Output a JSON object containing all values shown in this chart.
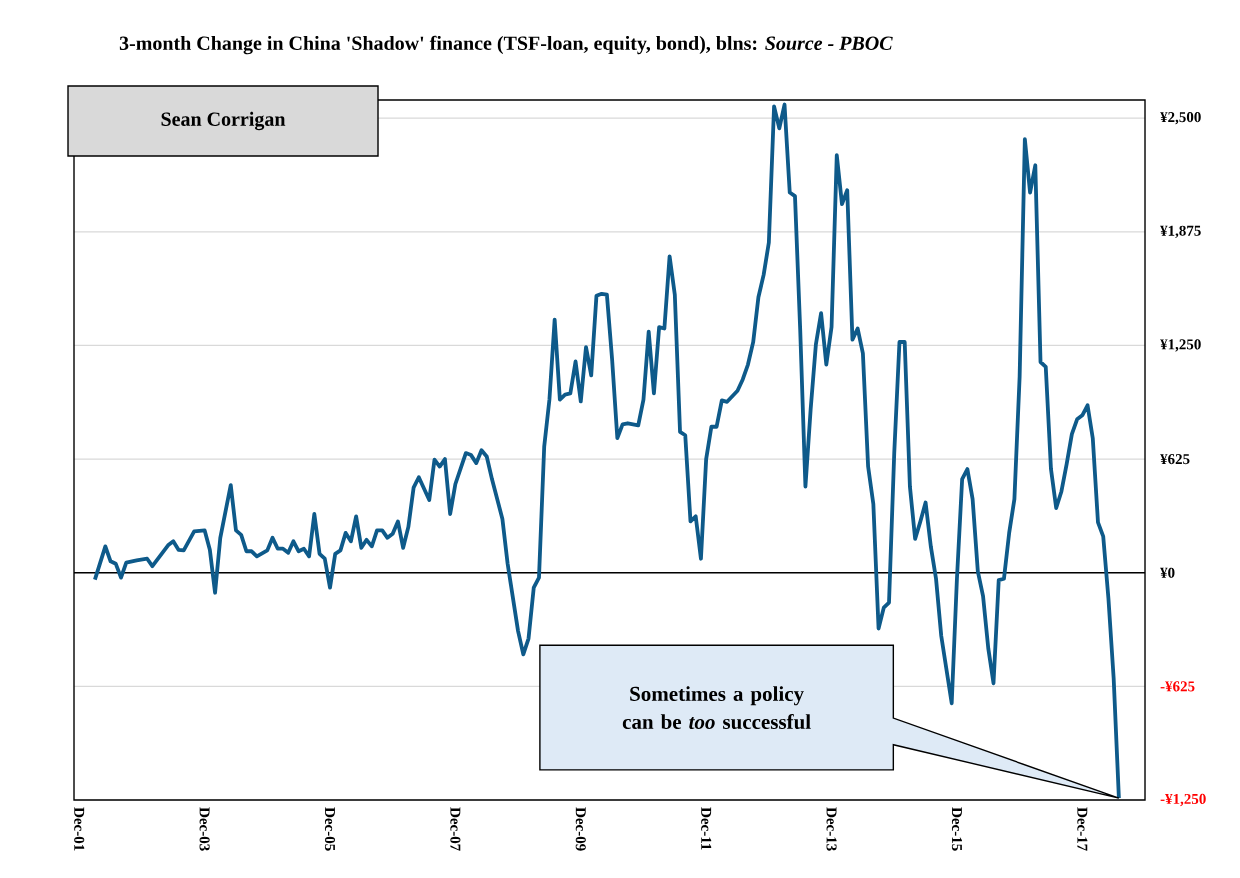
{
  "chart_data": {
    "type": "line",
    "title": "3-month Change in China 'Shadow' finance (TSF-loan, equity, bond), blns: *Source - PBOC*",
    "annotations": [
      "Sean Corrigan",
      "Sometimes a policy can be *too* successful"
    ],
    "x": [
      "2002-03",
      "2002-05",
      "2002-06",
      "2002-07",
      "2002-08",
      "2002-09",
      "2002-11",
      "2003-01",
      "2003-02",
      "2003-05",
      "2003-06",
      "2003-07",
      "2003-08",
      "2003-10",
      "2003-12",
      "2004-01",
      "2004-02",
      "2004-03",
      "2004-05",
      "2004-06",
      "2004-07",
      "2004-08",
      "2004-09",
      "2004-10",
      "2004-12",
      "2005-01",
      "2005-02",
      "2005-03",
      "2005-04",
      "2005-05",
      "2005-06",
      "2005-07",
      "2005-08",
      "2005-09",
      "2005-10",
      "2005-11",
      "2005-12",
      "2006-01",
      "2006-02",
      "2006-03",
      "2006-04",
      "2006-05",
      "2006-06",
      "2006-07",
      "2006-08",
      "2006-09",
      "2006-10",
      "2006-11",
      "2006-12",
      "2007-01",
      "2007-02",
      "2007-03",
      "2007-04",
      "2007-05",
      "2007-07",
      "2007-08",
      "2007-09",
      "2007-10",
      "2007-11",
      "2007-12",
      "2008-02",
      "2008-03",
      "2008-04",
      "2008-05",
      "2008-06",
      "2008-07",
      "2008-09",
      "2008-10",
      "2008-12",
      "2009-01",
      "2009-02",
      "2009-03",
      "2009-04",
      "2009-05",
      "2009-06",
      "2009-07",
      "2009-08",
      "2009-09",
      "2009-10",
      "2009-11",
      "2009-12",
      "2010-01",
      "2010-02",
      "2010-03",
      "2010-04",
      "2010-05",
      "2010-06",
      "2010-07",
      "2010-08",
      "2010-09",
      "2010-11",
      "2010-12",
      "2011-01",
      "2011-02",
      "2011-03",
      "2011-04",
      "2011-05",
      "2011-06",
      "2011-07",
      "2011-08",
      "2011-09",
      "2011-10",
      "2011-11",
      "2011-12",
      "2012-01",
      "2012-02",
      "2012-03",
      "2012-04",
      "2012-06",
      "2012-07",
      "2012-08",
      "2012-09",
      "2012-10",
      "2012-11",
      "2012-12",
      "2013-01",
      "2013-02",
      "2013-03",
      "2013-04",
      "2013-05",
      "2013-06",
      "2013-07",
      "2013-08",
      "2013-09",
      "2013-10",
      "2013-11",
      "2013-12",
      "2014-01",
      "2014-02",
      "2014-03",
      "2014-04",
      "2014-05",
      "2014-06",
      "2014-07",
      "2014-08",
      "2014-09",
      "2014-10",
      "2014-11",
      "2014-12",
      "2015-01",
      "2015-02",
      "2015-03",
      "2015-04",
      "2015-05",
      "2015-06",
      "2015-07",
      "2015-08",
      "2015-09",
      "2015-11",
      "2015-12",
      "2016-01",
      "2016-02",
      "2016-03",
      "2016-04",
      "2016-05",
      "2016-06",
      "2016-07",
      "2016-08",
      "2016-09",
      "2016-10",
      "2016-11",
      "2016-12",
      "2017-01",
      "2017-02",
      "2017-03",
      "2017-04",
      "2017-05",
      "2017-06",
      "2017-07",
      "2017-08",
      "2017-09",
      "2017-10",
      "2017-11",
      "2017-12",
      "2018-01",
      "2018-02",
      "2018-03",
      "2018-04",
      "2018-05",
      "2018-06",
      "2018-07"
    ],
    "series": [
      {
        "color": "#0e5a8a",
        "values": [
          -38,
          145,
          63,
          49,
          -27,
          55,
          68,
          77,
          36,
          151,
          173,
          126,
          123,
          227,
          233,
          126,
          -110,
          192,
          482,
          233,
          208,
          118,
          118,
          90,
          123,
          192,
          132,
          132,
          110,
          173,
          118,
          132,
          90,
          323,
          104,
          77,
          -82,
          104,
          123,
          219,
          173,
          310,
          137,
          181,
          145,
          233,
          233,
          192,
          214,
          282,
          137,
          252,
          468,
          525,
          400,
          622,
          584,
          625,
          323,
          488,
          658,
          647,
          603,
          674,
          639,
          515,
          296,
          49,
          -321,
          -449,
          -362,
          -82,
          -27,
          693,
          952,
          1392,
          952,
          980,
          986,
          1162,
          942,
          1241,
          1085,
          1523,
          1534,
          1529,
          1172,
          740,
          816,
          822,
          811,
          952,
          1326,
          986,
          1351,
          1343,
          1740,
          1529,
          775,
          756,
          282,
          310,
          77,
          625,
          803,
          803,
          948,
          940,
          1001,
          1063,
          1145,
          1268,
          1515,
          1638,
          1816,
          2565,
          2444,
          2575,
          2091,
          2071,
          1337,
          474,
          899,
          1255,
          1428,
          1145,
          1351,
          2296,
          2027,
          2104,
          1282,
          1343,
          1206,
          584,
          378,
          -307,
          -192,
          -164,
          658,
          1269,
          1269,
          474,
          186,
          282,
          386,
          145,
          -33,
          -348,
          -718,
          -33,
          515,
          570,
          405,
          8,
          -129,
          -416,
          -608,
          -41,
          -33,
          219,
          405,
          1077,
          2384,
          2091,
          2241,
          1159,
          1132,
          570,
          356,
          447,
          597,
          762,
          844,
          866,
          921,
          740,
          277,
          200,
          -142,
          -581,
          -1240
        ]
      }
    ],
    "xlim": [
      "2001-11",
      "2018-12"
    ],
    "xticks": [
      {
        "value": "2001-12",
        "label": "Dec-01"
      },
      {
        "value": "2003-12",
        "label": "Dec-03"
      },
      {
        "value": "2005-12",
        "label": "Dec-05"
      },
      {
        "value": "2007-12",
        "label": "Dec-07"
      },
      {
        "value": "2009-12",
        "label": "Dec-09"
      },
      {
        "value": "2011-12",
        "label": "Dec-11"
      },
      {
        "value": "2013-12",
        "label": "Dec-13"
      },
      {
        "value": "2015-12",
        "label": "Dec-15"
      },
      {
        "value": "2017-12",
        "label": "Dec-17"
      }
    ],
    "ylim": [
      -1250,
      2600
    ],
    "yticks": [
      {
        "value": -1250,
        "label": "-¥1,250"
      },
      {
        "value": -625,
        "label": "-¥625"
      },
      {
        "value": 0,
        "label": "¥0"
      },
      {
        "value": 625,
        "label": "¥625"
      },
      {
        "value": 1250,
        "label": "¥1,250"
      },
      {
        "value": 1875,
        "label": "¥1,875"
      },
      {
        "value": 2500,
        "label": "¥2,500"
      }
    ],
    "ref_lines": [
      {
        "axis": "y",
        "value": 0,
        "color": "#000000"
      }
    ],
    "grid": "y",
    "marker": "none",
    "line_style": "solid"
  }
}
